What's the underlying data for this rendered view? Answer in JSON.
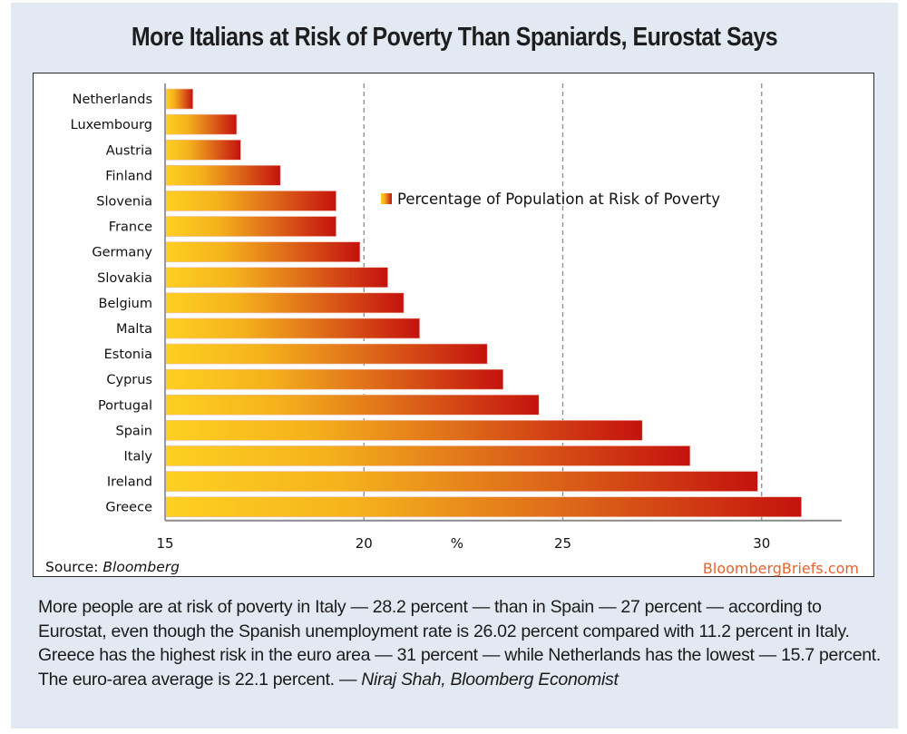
{
  "title": "More Italians at Risk of Poverty Than Spaniards, Eurostat Says",
  "chart_data": {
    "type": "bar",
    "orientation": "horizontal",
    "title": "More Italians at Risk of Poverty Than Spaniards, Eurostat Says",
    "categories": [
      "Netherlands",
      "Luxembourg",
      "Austria",
      "Finland",
      "Slovenia",
      "France",
      "Germany",
      "Slovakia",
      "Belgium",
      "Malta",
      "Estonia",
      "Cyprus",
      "Portugal",
      "Spain",
      "Italy",
      "Ireland",
      "Greece"
    ],
    "series": [
      {
        "name": "Percentage of Population at Risk of Poverty",
        "values": [
          15.7,
          16.8,
          16.9,
          17.9,
          19.3,
          19.3,
          19.9,
          20.6,
          21.0,
          21.4,
          23.1,
          23.5,
          24.4,
          27.0,
          28.2,
          29.9,
          31.0
        ]
      }
    ],
    "xlabel": "%",
    "ylabel": "",
    "xlim": [
      15,
      32
    ],
    "xticks": [
      15,
      20,
      25,
      30
    ],
    "xtick_labels": [
      "15",
      "20",
      "25",
      "30"
    ],
    "grid": "vertical dashed at 20, 25, 30",
    "legend": {
      "entries": [
        "Percentage of Population at Risk of Poverty"
      ],
      "placement": "center-right"
    },
    "colors": {
      "bar_start": "#fdd022",
      "bar_mid": "#eb8a1a",
      "bar_end": "#c4120e"
    }
  },
  "source": {
    "label": "Source: ",
    "name": "Bloomberg"
  },
  "brand": "BloombergBriefs.com",
  "caption": {
    "text": "More people are at risk of poverty in Italy — 28.2 percent — than in Spain — 27 percent — according to Eurostat, even though the Spanish unemployment rate is 26.02 percent compared with 11.2 percent in Italy. Greece has the highest risk in the euro area — 31 percent — while Netherlands has the lowest — 15.7 percent. The euro-area average is 22.1 percent.",
    "byline": "— Niraj Shah, Bloomberg Economist"
  },
  "colors": {
    "panel_bg": "#e3e9f3",
    "brand": "#e8622c"
  }
}
